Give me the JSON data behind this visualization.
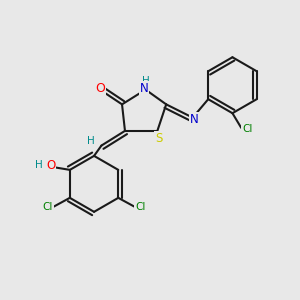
{
  "bg_color": "#e8e8e8",
  "bond_color": "#1a1a1a",
  "atom_colors": {
    "O": "#ff0000",
    "N": "#0000cc",
    "S": "#cccc00",
    "Cl": "#008000",
    "H": "#008b8b",
    "C": "#1a1a1a"
  },
  "lw": 1.5
}
